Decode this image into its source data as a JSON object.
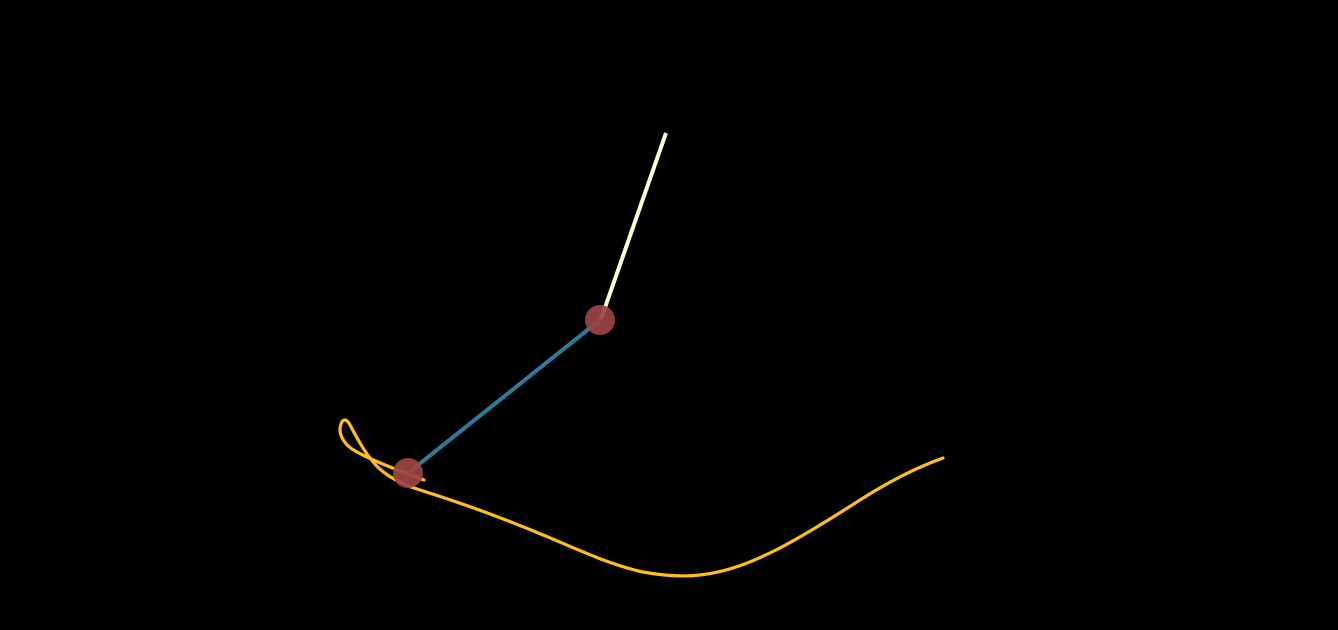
{
  "scene": {
    "background_color": "#000000",
    "upper_arm_color": "#FFFFCC",
    "lower_arm_color": "#2F7A99",
    "joint_color": "#9B4443",
    "trace_color": "#FFBE1F"
  }
}
